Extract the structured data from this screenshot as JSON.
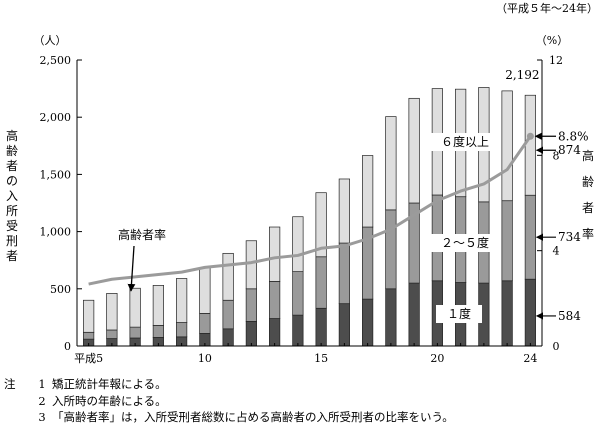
{
  "period_note": "（平成５年～24年）",
  "chart_data": {
    "type": "bar",
    "stacked": true,
    "categories": [
      "平成5",
      "6",
      "7",
      "8",
      "9",
      "10",
      "11",
      "12",
      "13",
      "14",
      "15",
      "16",
      "17",
      "18",
      "19",
      "20",
      "21",
      "22",
      "23",
      "24"
    ],
    "x_tick_labels": [
      {
        "index": 0,
        "label": "平成5"
      },
      {
        "index": 5,
        "label": "10"
      },
      {
        "index": 10,
        "label": "15"
      },
      {
        "index": 15,
        "label": "20"
      },
      {
        "index": 19,
        "label": "24"
      }
    ],
    "series": [
      {
        "name": "１度",
        "color": "#4d4d4d",
        "values": [
          60,
          65,
          70,
          75,
          80,
          110,
          150,
          215,
          240,
          270,
          330,
          370,
          410,
          500,
          550,
          570,
          555,
          550,
          570,
          584
        ]
      },
      {
        "name": "２～５度",
        "color": "#9a9a9a",
        "values": [
          60,
          75,
          95,
          105,
          125,
          175,
          250,
          285,
          325,
          380,
          450,
          530,
          630,
          690,
          700,
          750,
          750,
          710,
          700,
          734
        ]
      },
      {
        "name": "６度以上",
        "color": "#dedede",
        "values": [
          280,
          320,
          340,
          350,
          385,
          400,
          410,
          420,
          475,
          480,
          560,
          560,
          625,
          815,
          915,
          930,
          940,
          1000,
          960,
          874
        ]
      }
    ],
    "rate_series": {
      "name": "高齢者率",
      "axis": "right",
      "values": [
        2.6,
        2.8,
        2.9,
        3.0,
        3.1,
        3.3,
        3.4,
        3.5,
        3.7,
        3.8,
        4.1,
        4.2,
        4.5,
        4.9,
        5.5,
        6.1,
        6.5,
        6.8,
        7.4,
        8.8
      ]
    },
    "ylabel_left": "高齢者の入所受刑者",
    "ylabel_right": "高齢者率",
    "y_unit_left": "（人）",
    "y_unit_right": "（%）",
    "ylim": [
      0,
      2500
    ],
    "yticks": [
      "0",
      "500",
      "1,000",
      "1,500",
      "2,000",
      "2,500"
    ],
    "ylim_right": [
      0,
      12
    ],
    "yticks_right": [
      "0",
      "4",
      "8",
      "12"
    ],
    "annotations": {
      "total_last": "2,192",
      "rate_last": "8.8%",
      "seg_last_high": "874",
      "seg_last_mid": "734",
      "seg_last_low": "584",
      "label_high": "６度以上",
      "label_mid": "２～５度",
      "label_low": "１度",
      "label_rate": "高齢者率"
    },
    "grid": false
  },
  "notes": [
    {
      "key": "注",
      "num": "1",
      "text": "矯正統計年報による。"
    },
    {
      "key": "",
      "num": "2",
      "text": "入所時の年齢による。"
    },
    {
      "key": "",
      "num": "3",
      "text": "「高齢者率」は，入所受刑者総数に占める高齢者の入所受刑者の比率をいう。"
    }
  ]
}
